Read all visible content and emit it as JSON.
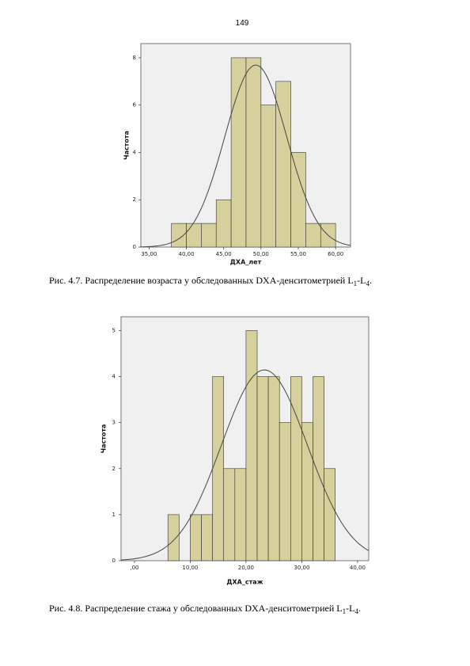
{
  "page_number": "149",
  "chart_data": [
    {
      "type": "histogram",
      "x_label": "ДХА_лет",
      "y_label": "Частота",
      "bins": [
        38,
        40,
        42,
        44,
        46,
        48,
        50,
        52,
        54,
        56,
        58,
        60
      ],
      "counts": [
        1,
        1,
        1,
        2,
        8,
        8,
        6,
        7,
        4,
        1,
        1
      ],
      "color": "#d6d19c",
      "normal_curve": {
        "mean": 49.3,
        "std": 4.15
      },
      "xlim": [
        33.9,
        62.0
      ],
      "ylim": [
        0,
        8.6
      ],
      "xticks": [
        {
          "value": 35,
          "label": "35,00"
        },
        {
          "value": 40,
          "label": "40,00"
        },
        {
          "value": 45,
          "label": "45,00"
        },
        {
          "value": 50,
          "label": "50,00"
        },
        {
          "value": 55,
          "label": "55,00"
        },
        {
          "value": 60,
          "label": "60,00"
        }
      ],
      "yticks": [
        0,
        2,
        4,
        6,
        8
      ]
    },
    {
      "type": "histogram",
      "x_label": "ДХА_стаж",
      "y_label": "Частота",
      "bins": [
        6,
        8,
        10,
        12,
        14,
        16,
        18,
        20,
        22,
        24,
        26,
        28,
        30,
        32,
        34,
        36
      ],
      "counts": [
        1,
        0,
        1,
        1,
        4,
        2,
        2,
        5,
        4,
        4,
        3,
        4,
        3,
        4,
        2
      ],
      "color": "#d6d19c",
      "normal_curve": {
        "mean": 23.3,
        "std": 7.7
      },
      "xlim": [
        -2.4,
        42.0
      ],
      "ylim": [
        0,
        5.3
      ],
      "xticks": [
        {
          "value": 0,
          "label": ",00"
        },
        {
          "value": 10,
          "label": "10,00"
        },
        {
          "value": 20,
          "label": "20,00"
        },
        {
          "value": 30,
          "label": "30,00"
        },
        {
          "value": 40,
          "label": "40,00"
        }
      ],
      "yticks": [
        0,
        1,
        2,
        3,
        4,
        5
      ]
    }
  ],
  "captions": [
    {
      "text": "Рис. 4.7. Распределение возраста у обследованных DXA-денситометрией L",
      "sub1": "1",
      "mid": "-L",
      "sub2": "4",
      "end": "."
    },
    {
      "text": "Рис. 4.8. Распределение стажа у обследованных DXA-денситометрией L",
      "sub1": "1",
      "mid": "-L",
      "sub2": "4",
      "end": "."
    }
  ]
}
